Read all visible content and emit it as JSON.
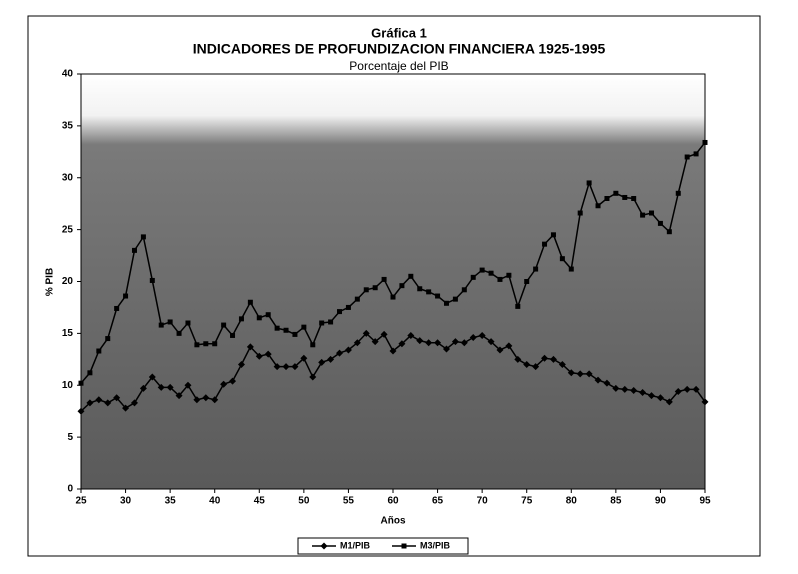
{
  "chart_data": {
    "type": "line",
    "title": "Gráfica 1",
    "subtitle": "INDICADORES DE PROFUNDIZACION FINANCIERA 1925-1995",
    "subtitle2": "Porcentaje del PIB",
    "x_label": "Años",
    "y_label": "% PIB",
    "x": [
      25,
      26,
      27,
      28,
      29,
      30,
      31,
      32,
      33,
      34,
      35,
      36,
      37,
      38,
      39,
      40,
      41,
      42,
      43,
      44,
      45,
      46,
      47,
      48,
      49,
      50,
      51,
      52,
      53,
      54,
      55,
      56,
      57,
      58,
      59,
      60,
      61,
      62,
      63,
      64,
      65,
      66,
      67,
      68,
      69,
      70,
      71,
      72,
      73,
      74,
      75,
      76,
      77,
      78,
      79,
      80,
      81,
      82,
      83,
      84,
      85,
      86,
      87,
      88,
      89,
      90,
      91,
      92,
      93,
      94,
      95
    ],
    "series": [
      {
        "name": "M1/PIB",
        "color": "#000000",
        "marker": "diamond",
        "values": [
          7.5,
          8.3,
          8.6,
          8.3,
          8.8,
          7.8,
          8.3,
          9.7,
          10.8,
          9.8,
          9.8,
          9,
          10,
          8.6,
          8.8,
          8.6,
          10.1,
          10.4,
          12,
          13.7,
          12.8,
          13,
          11.8,
          11.8,
          11.8,
          12.6,
          10.8,
          12.2,
          12.5,
          13.1,
          13.4,
          14.1,
          15,
          14.2,
          14.9,
          13.3,
          14,
          14.8,
          14.3,
          14.1,
          14.1,
          13.5,
          14.2,
          14.1,
          14.6,
          14.8,
          14.2,
          13.4,
          13.8,
          12.5,
          12,
          11.8,
          12.6,
          12.5,
          12,
          11.2,
          11.1,
          11.1,
          10.5,
          10.2,
          9.7,
          9.6,
          9.5,
          9.3,
          9,
          8.8,
          8.4,
          9.4,
          9.6,
          9.6,
          8.4
        ]
      },
      {
        "name": "M3/PIB",
        "color": "#000000",
        "marker": "square",
        "values": [
          10.2,
          11.2,
          13.3,
          14.5,
          17.4,
          18.6,
          23,
          24.3,
          20.1,
          15.8,
          16.1,
          15,
          16,
          13.9,
          14,
          14,
          15.8,
          14.8,
          16.4,
          18,
          16.5,
          16.8,
          15.5,
          15.3,
          14.9,
          15.6,
          13.9,
          16,
          16.1,
          17.1,
          17.5,
          18.3,
          19.2,
          19.4,
          20.2,
          18.5,
          19.6,
          20.5,
          19.3,
          19,
          18.6,
          17.9,
          18.3,
          19.2,
          20.4,
          21.1,
          20.8,
          20.2,
          20.6,
          17.6,
          20,
          21.2,
          23.6,
          24.5,
          22.2,
          21.2,
          26.6,
          29.5,
          27.3,
          28,
          28.5,
          28.1,
          28,
          26.4,
          26.6,
          25.6,
          24.8,
          28.5,
          32,
          32.3,
          33.4
        ]
      }
    ],
    "xlim": [
      25,
      95
    ],
    "xticks": [
      25,
      30,
      35,
      40,
      45,
      50,
      55,
      60,
      65,
      70,
      75,
      80,
      85,
      90,
      95
    ],
    "ylim": [
      0,
      40
    ],
    "yticks": [
      0,
      5,
      10,
      15,
      20,
      25,
      30,
      35,
      40
    ],
    "legend": "bottom"
  }
}
